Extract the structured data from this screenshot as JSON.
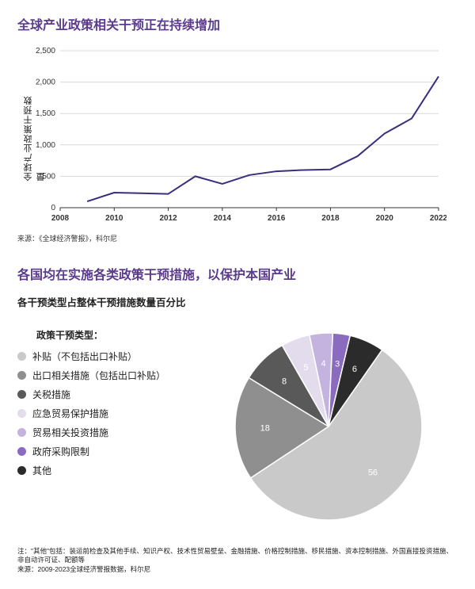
{
  "section1": {
    "title": "全球产业政策相关干预正在持续增加",
    "yaxis_label": "全球产业政策干预数量",
    "source": "来源：《全球经济警报》，科尔尼",
    "chart": {
      "type": "line",
      "xlim": [
        2008,
        2022
      ],
      "ylim": [
        0,
        2500
      ],
      "ytick_step": 500,
      "xtick_step": 2,
      "x_ticks": [
        2008,
        2010,
        2012,
        2014,
        2016,
        2018,
        2020,
        2022
      ],
      "y_ticks": [
        0,
        500,
        1000,
        1500,
        2000,
        2500
      ],
      "grid_color": "#d9d9d9",
      "axis_color": "#333333",
      "line_color": "#3b2e7e",
      "line_width": 2,
      "background_color": "#ffffff",
      "tick_fontsize": 10,
      "years": [
        2009,
        2010,
        2011,
        2012,
        2013,
        2014,
        2015,
        2016,
        2017,
        2018,
        2019,
        2020,
        2021,
        2022
      ],
      "values": [
        100,
        240,
        230,
        220,
        500,
        380,
        520,
        580,
        600,
        610,
        820,
        1180,
        1420,
        2090
      ]
    }
  },
  "section2": {
    "title": "各国均在实施各类政策干预措施，以保护本国产业",
    "subtitle": "各干预类型占整体干预措施数量百分比",
    "legend_title": "政策干预类型：",
    "pie": {
      "type": "pie",
      "start_angle_deg": -55,
      "label_fontsize": 11,
      "slices": [
        {
          "label": "补贴（不包括出口补贴）",
          "value": 56,
          "color": "#c9c9c9",
          "text_color": "#ffffff"
        },
        {
          "label": "出口相关措施（包括出口补贴）",
          "value": 18,
          "color": "#8f8f8f",
          "text_color": "#ffffff"
        },
        {
          "label": "关税措施",
          "value": 8,
          "color": "#595959",
          "text_color": "#ffffff"
        },
        {
          "label": "应急贸易保护措施",
          "value": 5,
          "color": "#e2dcec",
          "text_color": "#333333"
        },
        {
          "label": "贸易相关投资措施",
          "value": 4,
          "color": "#c3b3de",
          "text_color": "#333333"
        },
        {
          "label": "政府采购限制",
          "value": 3,
          "color": "#8a6bbf",
          "text_color": "#ffffff"
        },
        {
          "label": "其他",
          "value": 6,
          "color": "#2b2b2b",
          "text_color": "#ffffff"
        }
      ]
    },
    "footnote_line1": "注：\"其他\"包括：装运前检查及其他手续、知识产权、技术性贸易壁垒、金融措施、价格控制措施、移民措施、资本控制措施、外国直接投资措施、非自动许可证、配额等",
    "footnote_line2": "来源：2009-2023全球经济警报数据，科尔尼"
  }
}
